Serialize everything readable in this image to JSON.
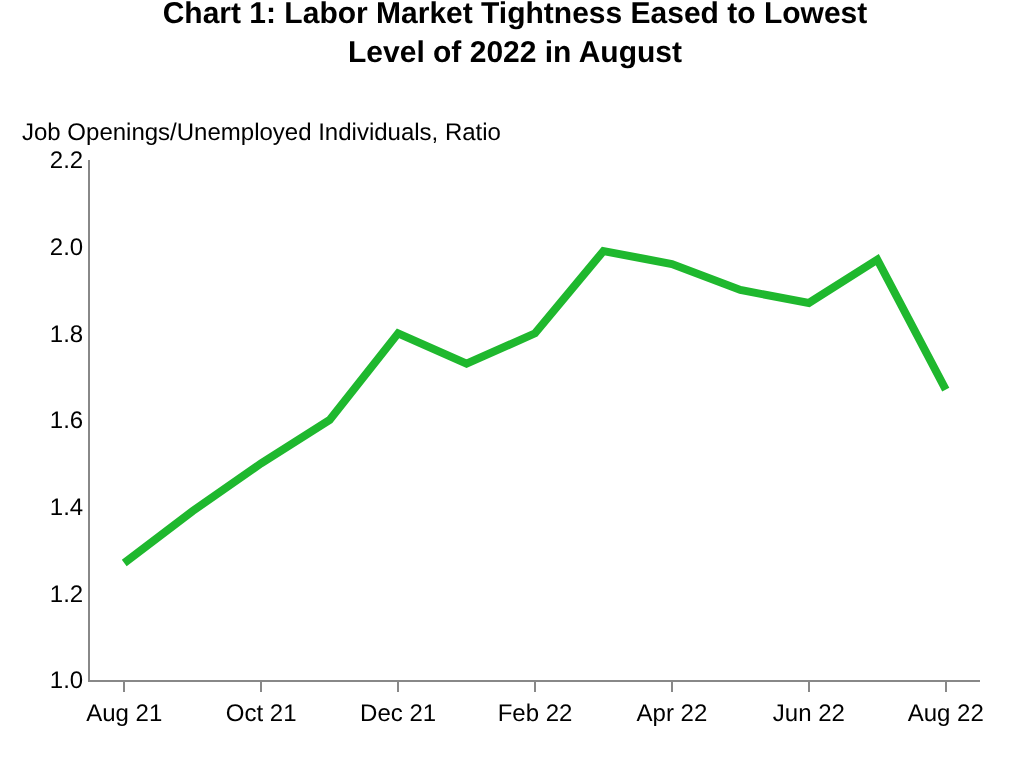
{
  "chart_data": {
    "type": "line",
    "title": "Chart 1: Labor Market Tightness Eased to Lowest\nLevel of 2022 in August",
    "ylabel": "Job Openings/Unemployed Individuals, Ratio",
    "categories": [
      "Aug 21",
      null,
      "Oct 21",
      null,
      "Dec 21",
      null,
      "Feb 22",
      null,
      "Apr 22",
      null,
      "Jun 22",
      null,
      "Aug 22"
    ],
    "series": [
      {
        "color": "#1fb82e",
        "values": [
          1.27,
          1.39,
          1.5,
          1.6,
          1.8,
          1.73,
          1.8,
          1.99,
          1.96,
          1.9,
          1.87,
          1.97,
          1.67
        ]
      }
    ],
    "ylim": [
      1.0,
      2.2
    ],
    "yticks": [
      {
        "value": 1.0,
        "label": "1.0"
      },
      {
        "value": 1.2,
        "label": "1.2"
      },
      {
        "value": 1.4,
        "label": "1.4"
      },
      {
        "value": 1.6,
        "label": "1.6"
      },
      {
        "value": 1.8,
        "label": "1.8"
      },
      {
        "value": 2.0,
        "label": "2.0"
      },
      {
        "value": 2.2,
        "label": "2.2"
      }
    ],
    "marker": "none",
    "line_style": "solid"
  }
}
